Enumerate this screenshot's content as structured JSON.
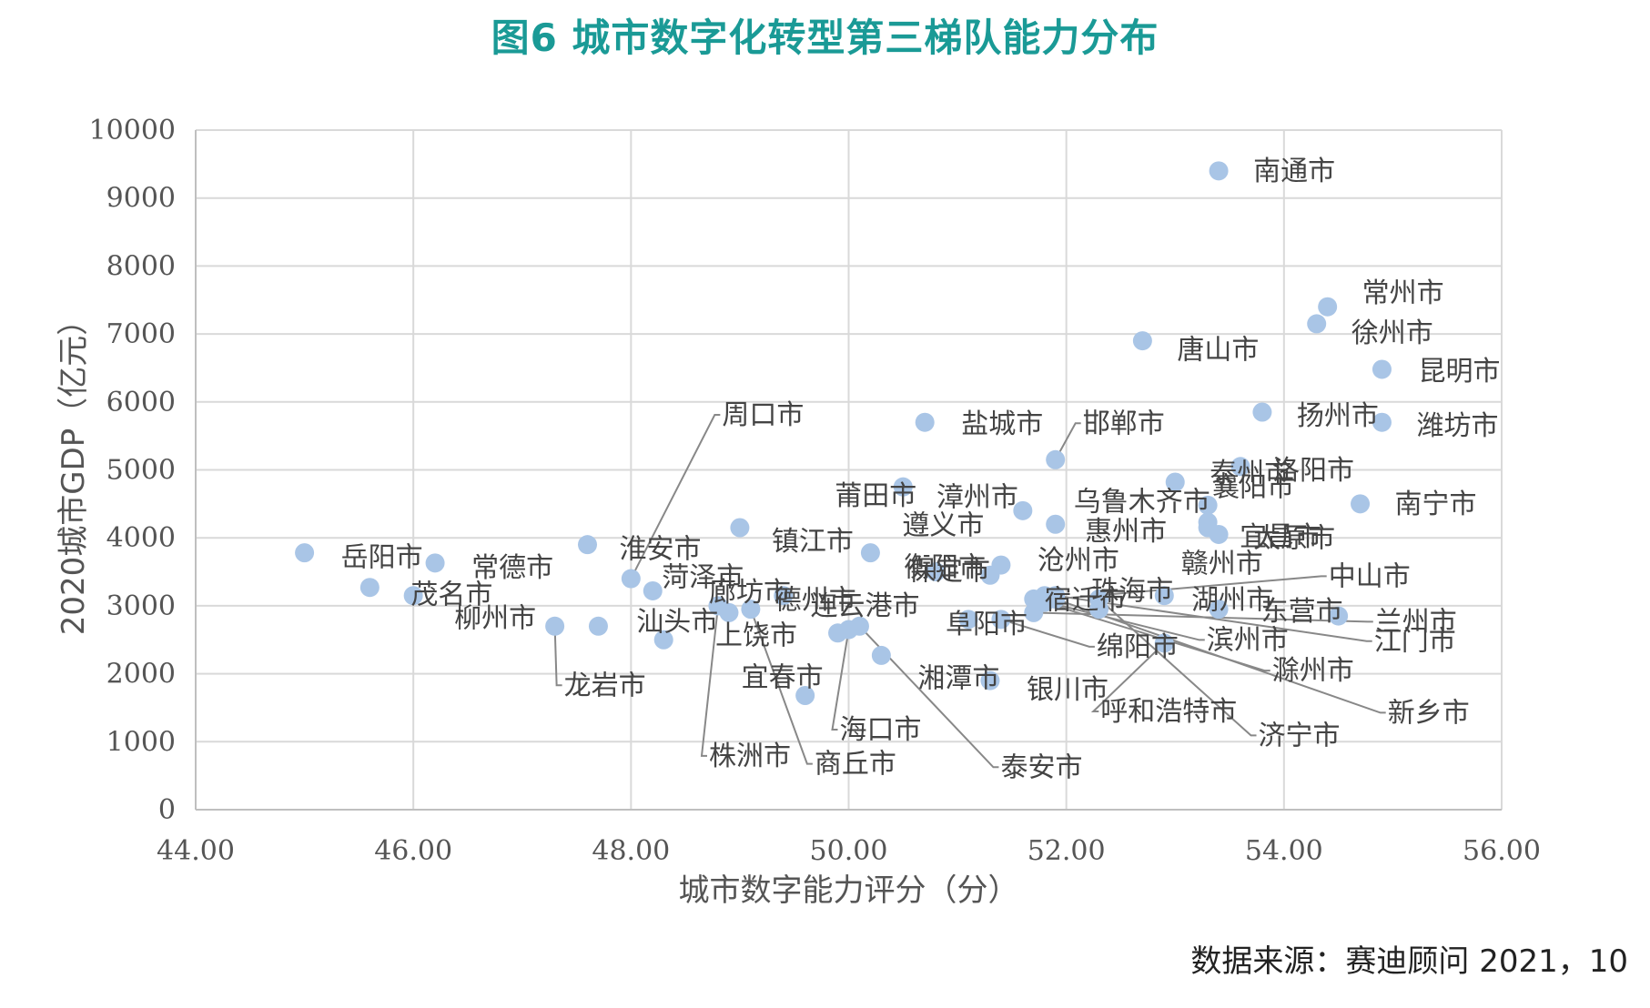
{
  "title": "图6  城市数字化转型第三梯队能力分布",
  "source": "数据来源：赛迪顾问  2021，10",
  "colors": {
    "title": "#1a9a96",
    "point": "#a9c5e6",
    "grid": "#d9d9d9",
    "leader": "#888888"
  },
  "chart_data": {
    "type": "scatter",
    "xlabel": "城市数字能力评分（分）",
    "ylabel": "2020城市GDP（亿元）",
    "xlim": [
      44,
      56
    ],
    "ylim": [
      0,
      10000
    ],
    "xticks": [
      "44.00",
      "46.00",
      "48.00",
      "50.00",
      "52.00",
      "54.00",
      "56.00"
    ],
    "yticks": [
      "0",
      "1000",
      "2000",
      "3000",
      "4000",
      "5000",
      "6000",
      "7000",
      "8000",
      "9000",
      "10000"
    ],
    "grid": true,
    "points": [
      {
        "name": "南通市",
        "x": 53.4,
        "y": 9400
      },
      {
        "name": "常州市",
        "x": 54.4,
        "y": 7400
      },
      {
        "name": "徐州市",
        "x": 54.3,
        "y": 7150
      },
      {
        "name": "唐山市",
        "x": 52.7,
        "y": 6900
      },
      {
        "name": "昆明市",
        "x": 54.9,
        "y": 6480
      },
      {
        "name": "扬州市",
        "x": 53.8,
        "y": 5850
      },
      {
        "name": "潍坊市",
        "x": 54.9,
        "y": 5700
      },
      {
        "name": "盐城市",
        "x": 50.7,
        "y": 5700
      },
      {
        "name": "邯郸市",
        "x": 51.9,
        "y": 5150
      },
      {
        "name": "泰州市",
        "x": 53.0,
        "y": 4820
      },
      {
        "name": "洛阳市",
        "x": 53.6,
        "y": 5050
      },
      {
        "name": "莆田市",
        "x": 50.5,
        "y": 4750
      },
      {
        "name": "周口市",
        "x": 48.0,
        "y": 3400
      },
      {
        "name": "漳州市",
        "x": 51.6,
        "y": 4400
      },
      {
        "name": "乌鲁木齐市",
        "x": 51.9,
        "y": 4200
      },
      {
        "name": "襄阳市",
        "x": 53.3,
        "y": 4480
      },
      {
        "name": "宜昌市",
        "x": 53.3,
        "y": 4150
      },
      {
        "name": "南宁市",
        "x": 54.7,
        "y": 4500
      },
      {
        "name": "惠州市",
        "x": 53.3,
        "y": 4230
      },
      {
        "name": "太原市",
        "x": 53.4,
        "y": 4050
      },
      {
        "name": "镇江市",
        "x": 49.0,
        "y": 4150
      },
      {
        "name": "遵义市",
        "x": 50.2,
        "y": 3780
      },
      {
        "name": "淮安市",
        "x": 47.6,
        "y": 3900
      },
      {
        "name": "保定市",
        "x": 51.3,
        "y": 3450
      },
      {
        "name": "沧州市",
        "x": 51.4,
        "y": 3600
      },
      {
        "name": "赣州市",
        "x": 51.8,
        "y": 3150
      },
      {
        "name": "中山市",
        "x": 51.9,
        "y": 3100
      },
      {
        "name": "珠海市",
        "x": 52.9,
        "y": 3150
      },
      {
        "name": "岳阳市",
        "x": 45.0,
        "y": 3780
      },
      {
        "name": "常德市",
        "x": 46.2,
        "y": 3630
      },
      {
        "name": "茂名市",
        "x": 45.6,
        "y": 3270
      },
      {
        "name": "柳州市",
        "x": 46.0,
        "y": 3150
      },
      {
        "name": "菏泽市",
        "x": 48.2,
        "y": 3220
      },
      {
        "name": "德州市",
        "x": 49.4,
        "y": 3150
      },
      {
        "name": "衡阳市",
        "x": 50.8,
        "y": 3500
      },
      {
        "name": "廊坊市",
        "x": 48.8,
        "y": 3000
      },
      {
        "name": "宿迁市",
        "x": 52.3,
        "y": 2950
      },
      {
        "name": "湖州市",
        "x": 53.4,
        "y": 2950
      },
      {
        "name": "东营市",
        "x": 54.5,
        "y": 2850
      },
      {
        "name": "兰州市",
        "x": 51.7,
        "y": 2900
      },
      {
        "name": "连云港市",
        "x": 49.9,
        "y": 2600
      },
      {
        "name": "阜阳市",
        "x": 51.1,
        "y": 2800
      },
      {
        "name": "汕头市",
        "x": 48.3,
        "y": 2500
      },
      {
        "name": "上饶市",
        "x": 48.9,
        "y": 2900
      },
      {
        "name": "滨州市",
        "x": 51.7,
        "y": 3100
      },
      {
        "name": "江门市",
        "x": 51.9,
        "y": 3150
      },
      {
        "name": "龙岩市",
        "x": 47.3,
        "y": 2700
      },
      {
        "name": "湘潭市",
        "x": 50.3,
        "y": 2270
      },
      {
        "name": "绵阳市",
        "x": 51.4,
        "y": 2800
      },
      {
        "name": "宜春市",
        "x": 49.6,
        "y": 1680
      },
      {
        "name": "海口市",
        "x": 50.0,
        "y": 2650
      },
      {
        "name": "银川市",
        "x": 51.3,
        "y": 1900
      },
      {
        "name": "呼和浩特市",
        "x": 52.9,
        "y": 2450
      },
      {
        "name": "滁州市",
        "x": 51.8,
        "y": 3050
      },
      {
        "name": "株洲市",
        "x": 48.8,
        "y": 3000
      },
      {
        "name": "商丘市",
        "x": 49.1,
        "y": 2950
      },
      {
        "name": "泰安市",
        "x": 50.1,
        "y": 2700
      },
      {
        "name": "新乡市",
        "x": 51.9,
        "y": 3100
      },
      {
        "name": "济宁市",
        "x": 52.3,
        "y": 3100
      },
      {
        "name": "",
        "x": 47.7,
        "y": 2700
      }
    ]
  }
}
